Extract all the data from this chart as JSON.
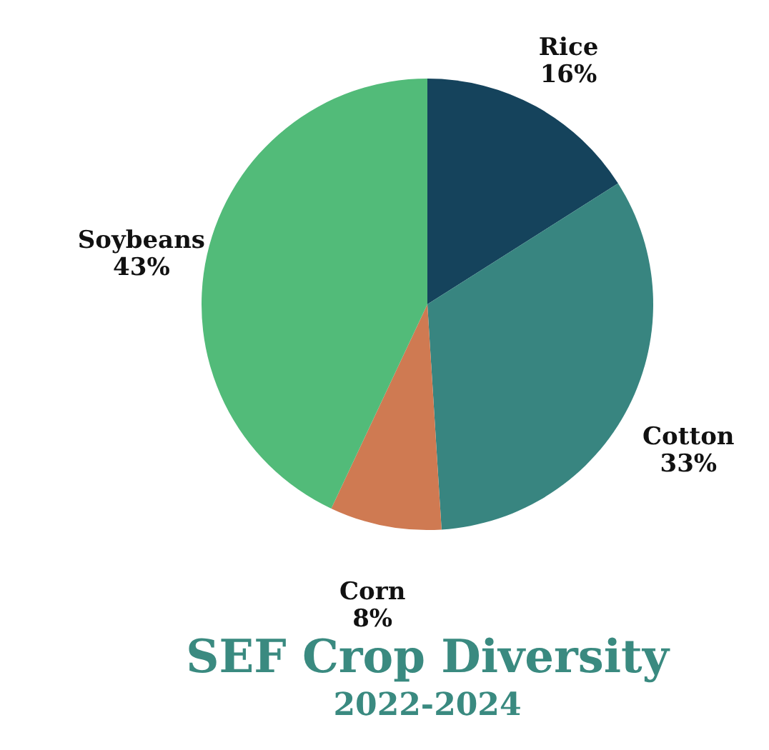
{
  "chart_data": {
    "type": "pie",
    "title": "SEF Crop Diversity",
    "subtitle": "2022-2024",
    "categories": [
      "Rice",
      "Cotton",
      "Corn",
      "Soybeans"
    ],
    "values": [
      16,
      33,
      8,
      43
    ],
    "value_labels": [
      "16%",
      "33%",
      "8%",
      "43%"
    ],
    "colors": [
      "#15435c",
      "#388580",
      "#cf7a52",
      "#52bb79"
    ]
  }
}
